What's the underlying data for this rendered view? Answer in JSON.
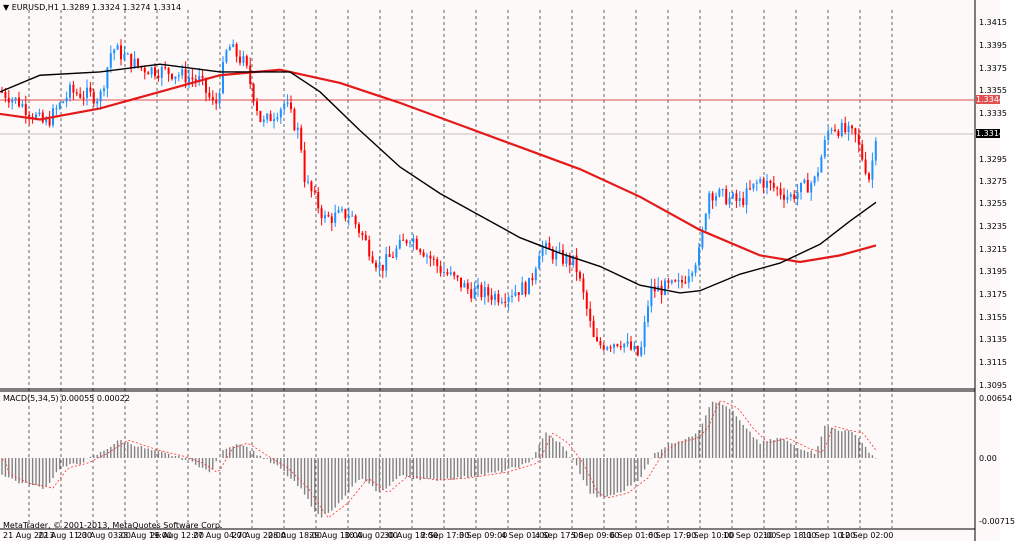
{
  "platform": "MetaTrader",
  "chart": {
    "symbol_header": "EURUSD,H1  1.3289 1.3324 1.3274 1.3314",
    "menu_arrow": "▼",
    "price_labels": [
      "1.3415",
      "1.3395",
      "1.3375",
      "1.3355",
      "1.3335",
      "1.3295",
      "1.3275",
      "1.3255",
      "1.3235",
      "1.3215",
      "1.3195",
      "1.3175",
      "1.3155",
      "1.3135",
      "1.3115",
      "1.3095"
    ],
    "horizontal_line_price": "1.3344",
    "current_price": "1.3314",
    "time_labels": [
      "21 Aug 2013",
      "22 Aug 11:00",
      "23 Aug 03:00",
      "23 Aug 19:00",
      "26 Aug 12:00",
      "27 Aug 04:00",
      "27 Aug 20:00",
      "28 Aug 18:00",
      "29 Aug 10:00",
      "30 Aug 02:00",
      "30 Aug 18:00",
      "2 Sep 17:00",
      "3 Sep 09:00",
      "4 Sep 01:00",
      "4 Sep 17:00",
      "5 Sep 09:00",
      "6 Sep 01:00",
      "6 Sep 17:00",
      "9 Sep 10:00",
      "10 Sep 02:00",
      "10 Sep 18:00",
      "11 Sep 10:00",
      "12 Sep 02:00"
    ],
    "colors": {
      "background": "#fdf9f9",
      "bull_candle": "#1e90ff",
      "bear_candle": "#ff0000",
      "slow_ma": "#e41a1a",
      "fast_ma": "#000000",
      "hline": "#e05050",
      "grid": "#000000",
      "macd_hist": "#808080",
      "macd_signal": "#ff3030"
    }
  },
  "macd": {
    "header": "MACD(5,34,5) 0.00055 0.00022",
    "labels": [
      "0.00654",
      "0.00",
      "-0.00715"
    ]
  },
  "footer": {
    "copyright": "MetaTrader, © 2001-2013, MetaQuotes Software Corp."
  }
}
